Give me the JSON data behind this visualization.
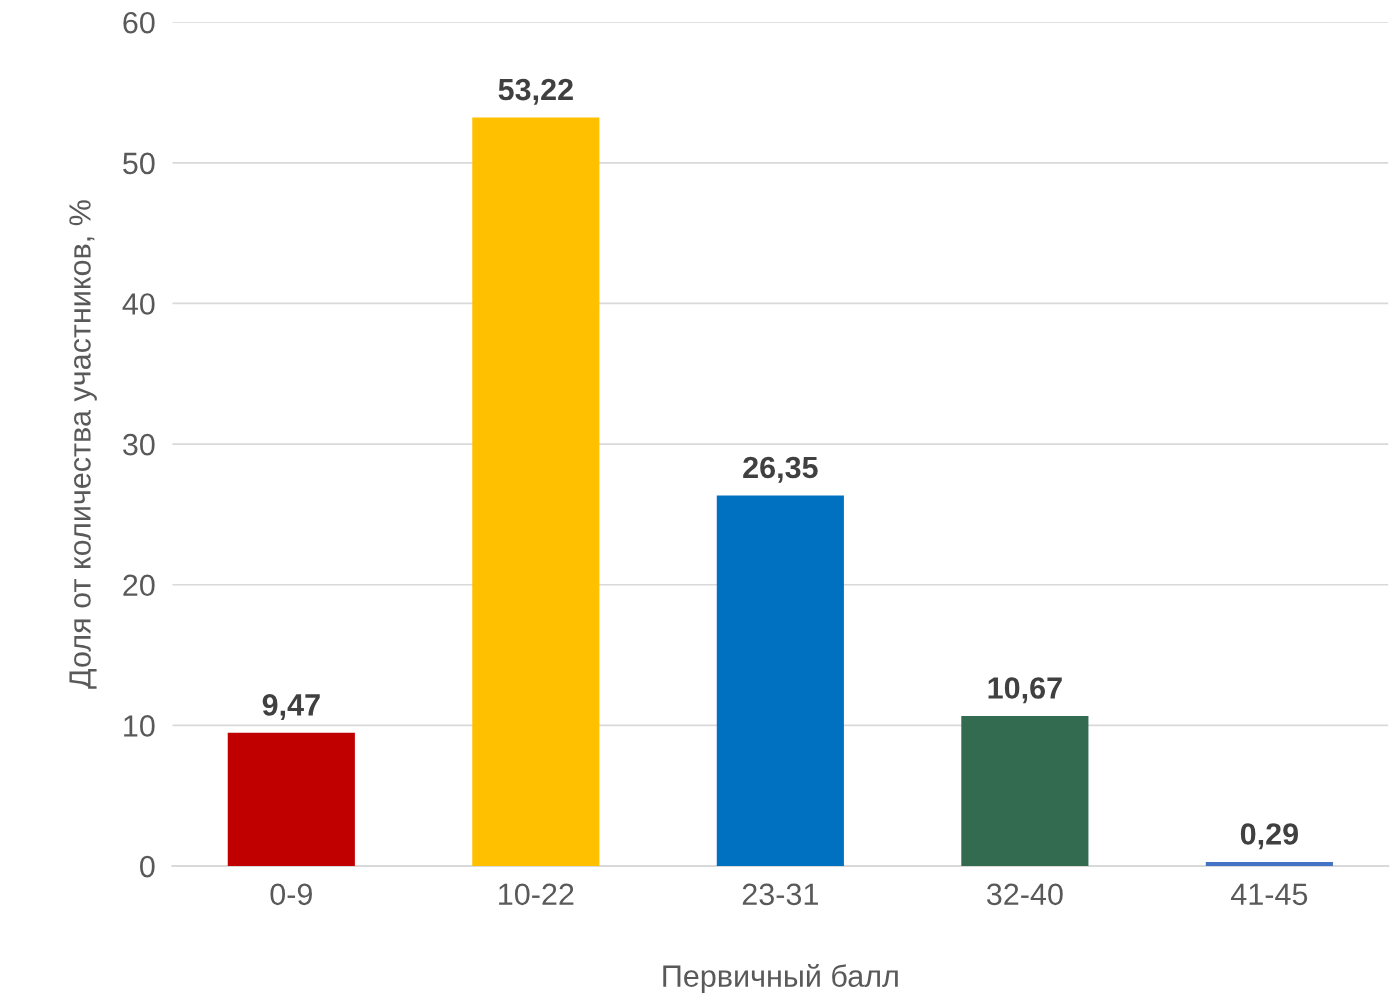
{
  "chart_data": {
    "type": "bar",
    "xlabel": "Первичный балл",
    "ylabel": "Доля от количества участников, %",
    "categories": [
      "0-9",
      "10-22",
      "23-31",
      "32-40",
      "41-45"
    ],
    "values": [
      9.47,
      53.22,
      26.35,
      10.67,
      0.29
    ],
    "colors": [
      "#c00000",
      "#ffc000",
      "#0070c0",
      "#336b51",
      "#4472c4"
    ],
    "value_labels": [
      "9,47",
      "53,22",
      "26,35",
      "10,67",
      "0,29"
    ],
    "ylim": [
      0,
      60
    ],
    "yticks": [
      0,
      10,
      20,
      30,
      40,
      50,
      60
    ],
    "grid": "y"
  }
}
